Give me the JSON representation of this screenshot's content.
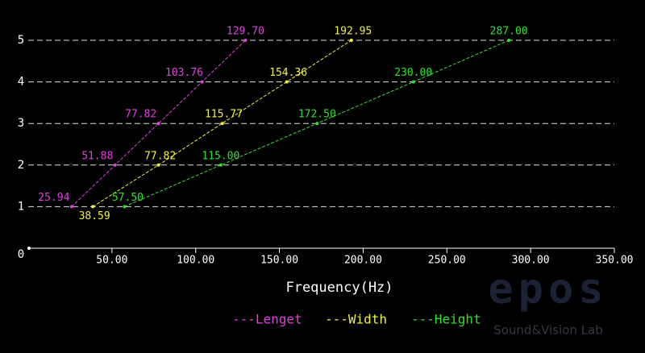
{
  "chart_data": {
    "type": "line",
    "xlabel": "Frequency(Hz)",
    "xlim": [
      0,
      350
    ],
    "ylim": [
      0,
      5
    ],
    "xticks": [
      {
        "value": 50,
        "label": "50.00"
      },
      {
        "value": 100,
        "label": "100.00"
      },
      {
        "value": 150,
        "label": "150.00"
      },
      {
        "value": 200,
        "label": "200.00"
      },
      {
        "value": 250,
        "label": "250.00"
      },
      {
        "value": 300,
        "label": "300.00"
      },
      {
        "value": 350,
        "label": "350.00"
      }
    ],
    "yticks": [
      0,
      1,
      2,
      3,
      4,
      5
    ],
    "grid": true,
    "series": [
      {
        "name": "---Lenget",
        "color": "#e040e0",
        "x": [
          25.94,
          51.88,
          77.82,
          103.76,
          129.7
        ],
        "values": [
          1,
          2,
          3,
          4,
          5
        ],
        "value_labels": [
          "25.94",
          "51.88",
          "77.82",
          "103.76",
          "129.70"
        ]
      },
      {
        "name": "---Width",
        "color": "#f0f040",
        "x": [
          38.59,
          77.82,
          115.77,
          154.36,
          192.95
        ],
        "values": [
          1,
          2,
          3,
          4,
          5
        ],
        "value_labels": [
          "38.59",
          "77.82",
          "115.77",
          "154.36",
          "192.95"
        ]
      },
      {
        "name": "---Height",
        "color": "#30e030",
        "x": [
          57.5,
          115.0,
          172.5,
          230.0,
          287.0
        ],
        "values": [
          1,
          2,
          3,
          4,
          5
        ],
        "value_labels": [
          "57.50",
          "115.00",
          "172.50",
          "230.00",
          "287.00"
        ]
      }
    ]
  },
  "watermark": {
    "logo": "epos",
    "tagline": "Sound&Vision Lab"
  }
}
